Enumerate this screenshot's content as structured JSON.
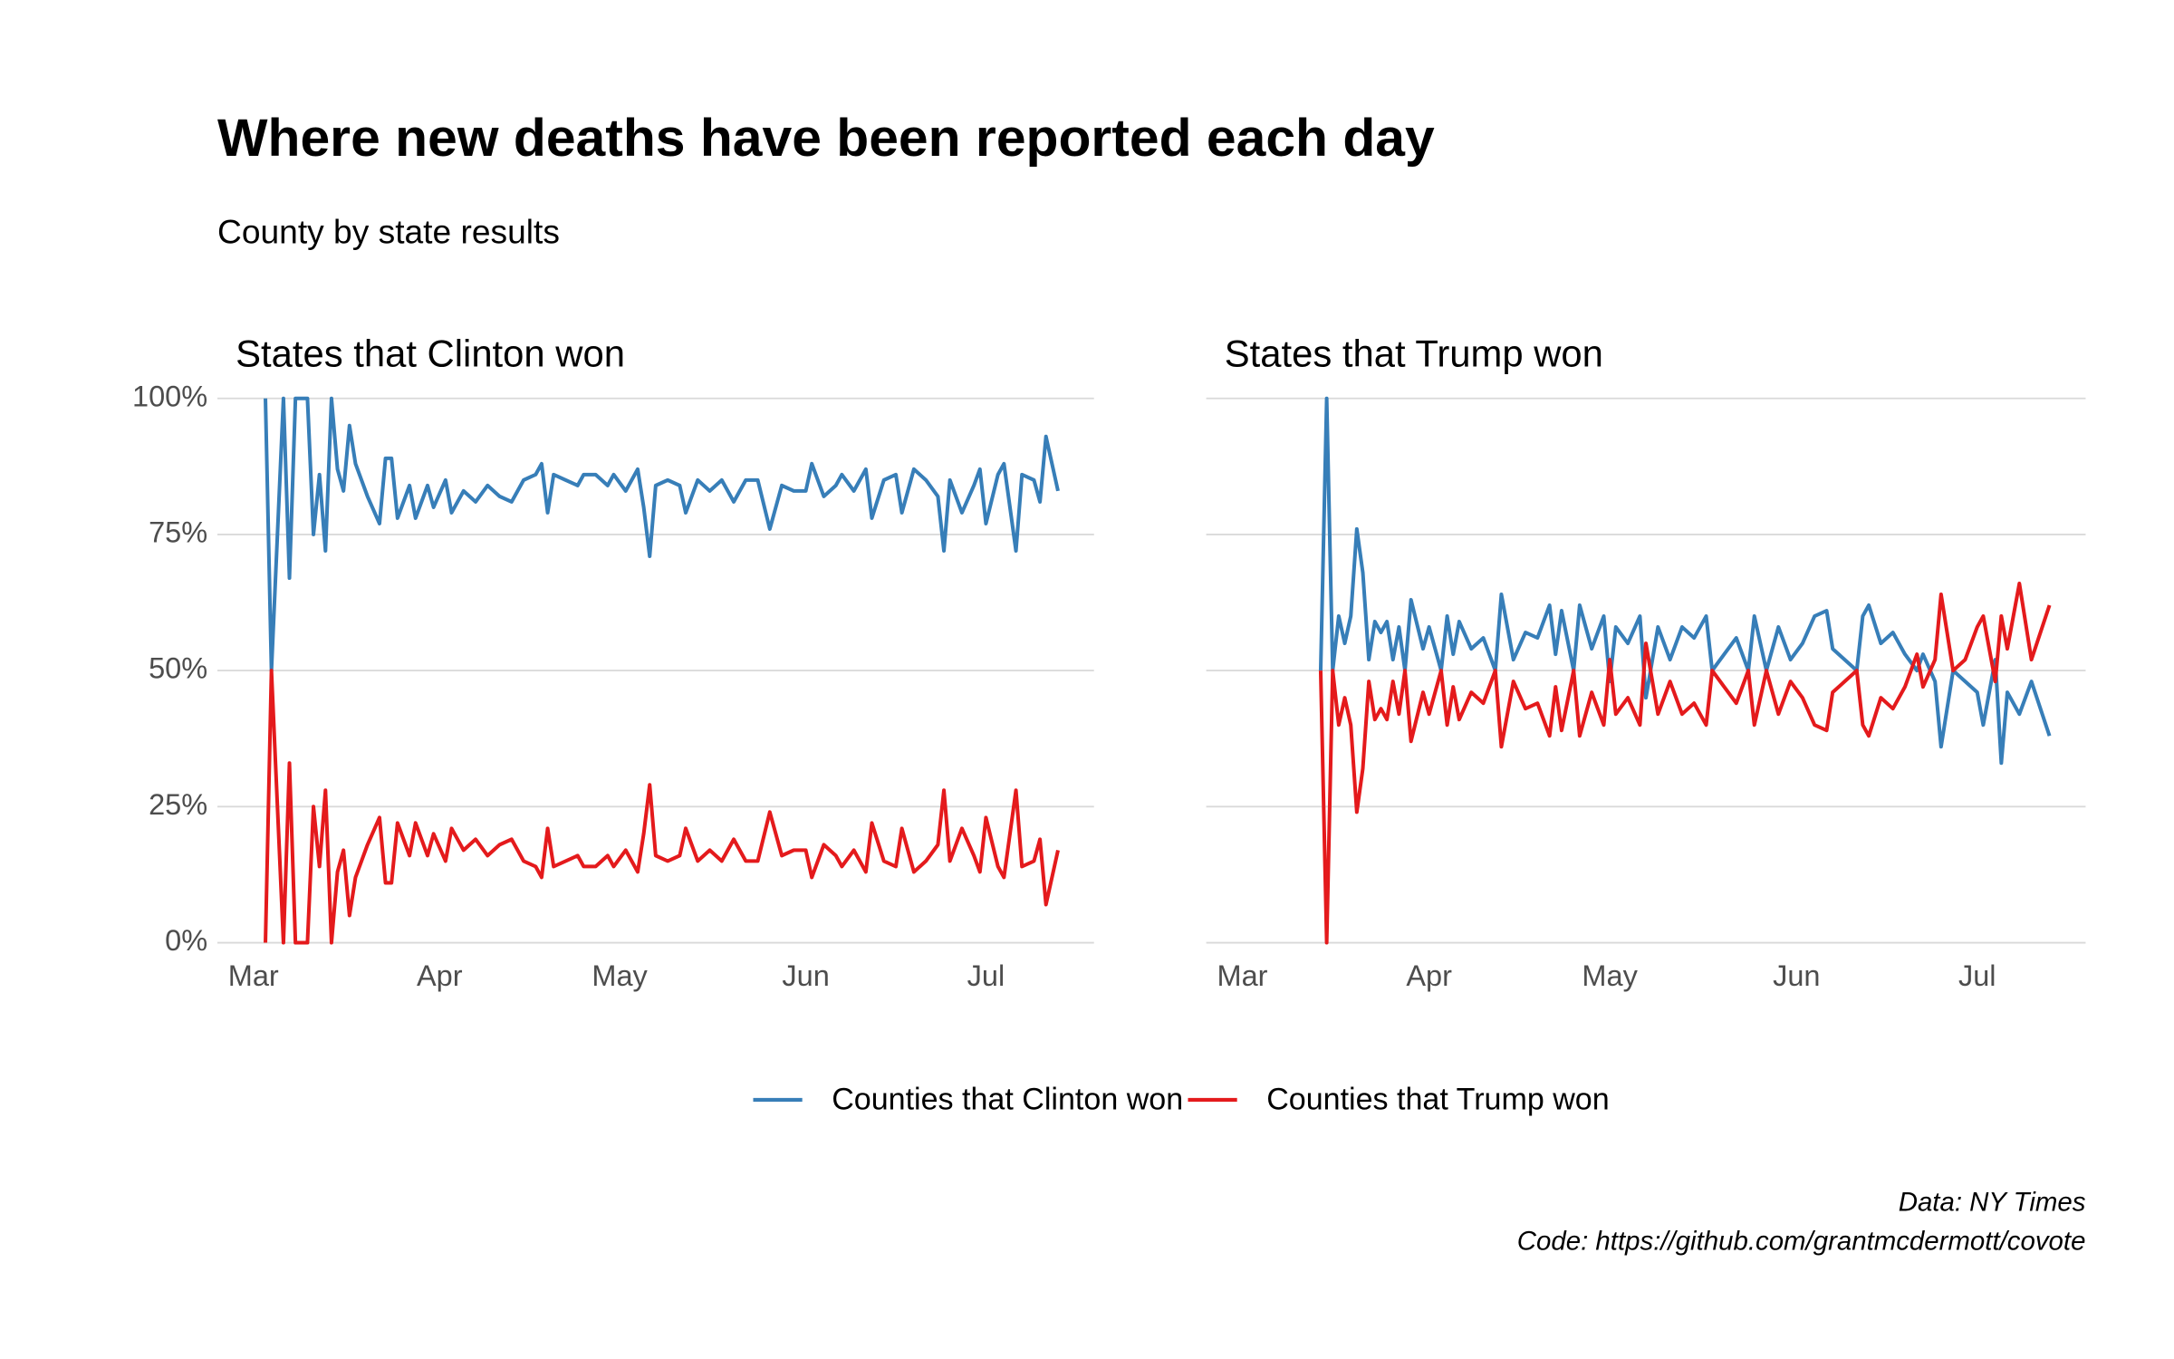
{
  "title": "Where new deaths have been reported each day",
  "subtitle": "County by state results",
  "caption": [
    "Data: NY Times",
    "Code: https://github.com/grantmcdermott/covote"
  ],
  "chart_data": [
    {
      "type": "line",
      "title": "States that Clinton won",
      "x": [
        2,
        3,
        5,
        6,
        7,
        9,
        10,
        11,
        12,
        13,
        14,
        15,
        16,
        17,
        19,
        21,
        22,
        23,
        24,
        26,
        27,
        29,
        30,
        32,
        33,
        35,
        37,
        39,
        41,
        43,
        45,
        47,
        48,
        49,
        50,
        52,
        54,
        55,
        57,
        59,
        60,
        62,
        64,
        65,
        66,
        67,
        69,
        71,
        72,
        74,
        76,
        78,
        80,
        82,
        84,
        86,
        88,
        90,
        92,
        93,
        95,
        97,
        98,
        100,
        102,
        103,
        105,
        107,
        108,
        110,
        112,
        114,
        115,
        116,
        118,
        120,
        121,
        122,
        124,
        125,
        127,
        128,
        130,
        131,
        132,
        134
      ],
      "series": [
        {
          "name": "Counties that Clinton won",
          "color": "#377eb8",
          "values": [
            100,
            50,
            100,
            67,
            100,
            100,
            75,
            86,
            72,
            100,
            87,
            83,
            95,
            88,
            82,
            77,
            89,
            89,
            78,
            84,
            78,
            84,
            80,
            85,
            79,
            83,
            81,
            84,
            82,
            81,
            85,
            86,
            88,
            79,
            86,
            85,
            84,
            86,
            86,
            84,
            86,
            83,
            87,
            80,
            71,
            84,
            85,
            84,
            79,
            85,
            83,
            85,
            81,
            85,
            85,
            76,
            84,
            83,
            83,
            88,
            82,
            84,
            86,
            83,
            87,
            78,
            85,
            86,
            79,
            87,
            85,
            82,
            72,
            85,
            79,
            84,
            87,
            77,
            86,
            88,
            72,
            86,
            85,
            81,
            93,
            83
          ]
        },
        {
          "name": "Counties that Trump won",
          "color": "#e41a1c",
          "values": [
            0,
            50,
            0,
            33,
            0,
            0,
            25,
            14,
            28,
            0,
            13,
            17,
            5,
            12,
            18,
            23,
            11,
            11,
            22,
            16,
            22,
            16,
            20,
            15,
            21,
            17,
            19,
            16,
            18,
            19,
            15,
            14,
            12,
            21,
            14,
            15,
            16,
            14,
            14,
            16,
            14,
            17,
            13,
            20,
            29,
            16,
            15,
            16,
            21,
            15,
            17,
            15,
            19,
            15,
            15,
            24,
            16,
            17,
            17,
            12,
            18,
            16,
            14,
            17,
            13,
            22,
            15,
            14,
            21,
            13,
            15,
            18,
            28,
            15,
            21,
            16,
            13,
            23,
            14,
            12,
            28,
            14,
            15,
            19,
            7,
            17
          ]
        }
      ],
      "xlim": [
        -6,
        140
      ],
      "xticks": [
        {
          "value": 0,
          "label": "Mar"
        },
        {
          "value": 31,
          "label": "Apr"
        },
        {
          "value": 61,
          "label": "May"
        },
        {
          "value": 92,
          "label": "Jun"
        },
        {
          "value": 122,
          "label": "Jul"
        }
      ],
      "ylim": [
        0,
        100
      ],
      "yticks": [
        {
          "value": 0,
          "label": "0%"
        },
        {
          "value": 25,
          "label": "25%"
        },
        {
          "value": 50,
          "label": "50%"
        },
        {
          "value": 75,
          "label": "75%"
        },
        {
          "value": 100,
          "label": "100%"
        }
      ],
      "grid": true,
      "legend": "bottom"
    },
    {
      "type": "line",
      "title": "States that Trump won",
      "x": [
        13,
        14,
        15,
        16,
        17,
        18,
        19,
        20,
        21,
        22,
        23,
        24,
        25,
        26,
        27,
        28,
        30,
        31,
        33,
        34,
        35,
        36,
        38,
        40,
        42,
        43,
        45,
        47,
        49,
        51,
        52,
        53,
        55,
        56,
        58,
        60,
        61,
        62,
        64,
        66,
        67,
        69,
        71,
        73,
        75,
        77,
        78,
        80,
        82,
        84,
        85,
        87,
        89,
        91,
        93,
        95,
        97,
        98,
        100,
        102,
        103,
        104,
        106,
        108,
        110,
        112,
        113,
        115,
        116,
        118,
        120,
        122,
        123,
        125,
        126,
        127,
        129,
        131,
        134
      ],
      "series": [
        {
          "name": "Counties that Clinton won",
          "color": "#377eb8",
          "values": [
            50,
            100,
            50,
            60,
            55,
            60,
            76,
            68,
            52,
            59,
            57,
            59,
            52,
            58,
            50,
            63,
            54,
            58,
            50,
            60,
            53,
            59,
            54,
            56,
            50,
            64,
            52,
            57,
            56,
            62,
            53,
            61,
            50,
            62,
            54,
            60,
            48,
            58,
            55,
            60,
            45,
            58,
            52,
            58,
            56,
            60,
            50,
            53,
            56,
            50,
            60,
            50,
            58,
            52,
            55,
            60,
            61,
            54,
            52,
            50,
            60,
            62,
            55,
            57,
            53,
            50,
            53,
            48,
            36,
            50,
            48,
            46,
            40,
            52,
            33,
            46,
            42,
            48,
            38
          ]
        },
        {
          "name": "Counties that Trump won",
          "color": "#e41a1c",
          "values": [
            50,
            0,
            50,
            40,
            45,
            40,
            24,
            32,
            48,
            41,
            43,
            41,
            48,
            42,
            50,
            37,
            46,
            42,
            50,
            40,
            47,
            41,
            46,
            44,
            50,
            36,
            48,
            43,
            44,
            38,
            47,
            39,
            50,
            38,
            46,
            40,
            52,
            42,
            45,
            40,
            55,
            42,
            48,
            42,
            44,
            40,
            50,
            47,
            44,
            50,
            40,
            50,
            42,
            48,
            45,
            40,
            39,
            46,
            48,
            50,
            40,
            38,
            45,
            43,
            47,
            53,
            47,
            52,
            64,
            50,
            52,
            58,
            60,
            48,
            60,
            54,
            66,
            52,
            62
          ]
        }
      ],
      "xlim": [
        -6,
        140
      ],
      "xticks": [
        {
          "value": 0,
          "label": "Mar"
        },
        {
          "value": 31,
          "label": "Apr"
        },
        {
          "value": 61,
          "label": "May"
        },
        {
          "value": 92,
          "label": "Jun"
        },
        {
          "value": 122,
          "label": "Jul"
        }
      ],
      "ylim": [
        0,
        100
      ],
      "yticks": [
        0,
        25,
        50,
        75,
        100
      ],
      "grid": true
    }
  ]
}
